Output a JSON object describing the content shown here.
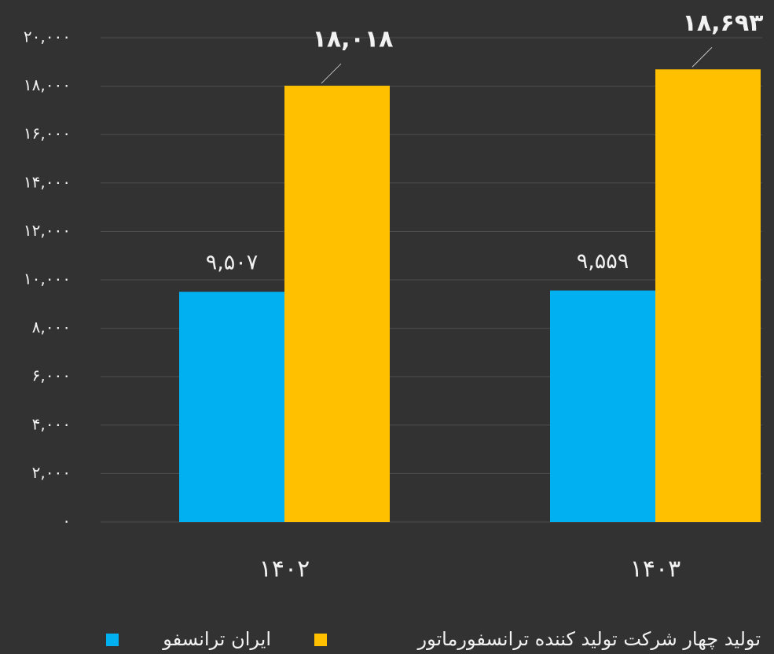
{
  "chart_data": {
    "type": "bar",
    "categories": [
      "۱۴۰۲",
      "۱۴۰۳"
    ],
    "series": [
      {
        "name": "ایران ترانسفو",
        "color": "#00b0f0",
        "values": [
          9507,
          9559
        ],
        "value_labels": [
          "۹,۵۰۷",
          "۹,۵۵۹"
        ]
      },
      {
        "name": "تولید چهار شرکت تولید کننده ترانسفورماتور",
        "color": "#ffc000",
        "values": [
          18018,
          18693
        ],
        "value_labels": [
          "۱۸,۰۱۸",
          "۱۸,۶۹۳"
        ]
      }
    ],
    "ylim": [
      0,
      20000
    ],
    "yticks": [
      {
        "value": 0,
        "label": "۰"
      },
      {
        "value": 2000,
        "label": "۲,۰۰۰"
      },
      {
        "value": 4000,
        "label": "۴,۰۰۰"
      },
      {
        "value": 6000,
        "label": "۶,۰۰۰"
      },
      {
        "value": 8000,
        "label": "۸,۰۰۰"
      },
      {
        "value": 10000,
        "label": "۱۰,۰۰۰"
      },
      {
        "value": 12000,
        "label": "۱۲,۰۰۰"
      },
      {
        "value": 14000,
        "label": "۱۴,۰۰۰"
      },
      {
        "value": 16000,
        "label": "۱۶,۰۰۰"
      },
      {
        "value": 18000,
        "label": "۱۸,۰۰۰"
      },
      {
        "value": 20000,
        "label": "۲۰,۰۰۰"
      }
    ],
    "grid": true,
    "legend": "bottom"
  }
}
